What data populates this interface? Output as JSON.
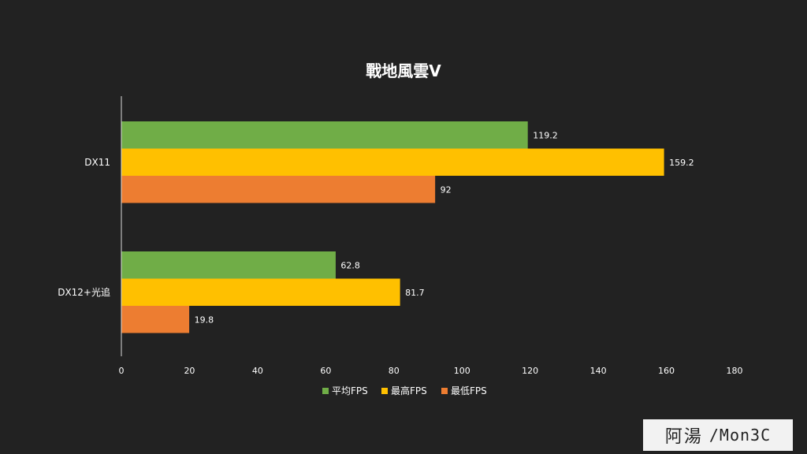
{
  "chart_data": {
    "type": "bar",
    "orientation": "horizontal",
    "title": "戰地風雲Ⅴ",
    "categories": [
      "DX11",
      "DX12+光追"
    ],
    "series": [
      {
        "name": "平均FPS",
        "color": "#70ad47",
        "values": [
          119.2,
          62.8
        ],
        "labels": [
          "119.2",
          "62.8"
        ]
      },
      {
        "name": "最高FPS",
        "color": "#ffc000",
        "values": [
          159.2,
          81.7
        ],
        "labels": [
          "159.2",
          "81.7"
        ]
      },
      {
        "name": "最低FPS",
        "color": "#ed7d31",
        "values": [
          92,
          19.8
        ],
        "labels": [
          "92",
          "19.8"
        ]
      }
    ],
    "xlim": [
      0,
      180
    ],
    "xticks": [
      "0",
      "20",
      "40",
      "60",
      "80",
      "100",
      "120",
      "140",
      "160",
      "180"
    ],
    "grid": false,
    "legend": "bottom"
  },
  "watermark": {
    "cjk_text": "阿湯",
    "logo_text": "/Mon3C"
  }
}
